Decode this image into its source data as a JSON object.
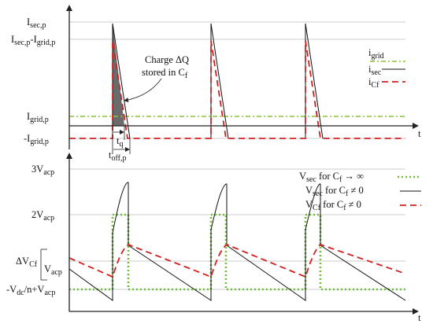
{
  "top": {
    "y_labels": {
      "isec_peak": "I",
      "isec_peak_sub": "sec,p",
      "diff": "I",
      "diff_sub": "sec,p",
      "diff_tail": "-I",
      "diff_tail_sub": "grid,p",
      "igrid": "I",
      "igrid_sub": "grid,p",
      "neg_igrid": "-I",
      "neg_igrid_sub": "grid,p"
    },
    "t_label": "t",
    "annotation": {
      "line1": "Charge ΔQ",
      "line2": "stored in C",
      "line2_sub": "f"
    },
    "tq": {
      "main": "t",
      "sub": "q"
    },
    "toff": {
      "main": "t",
      "sub": "off,p"
    },
    "legend": [
      {
        "main": "i",
        "sub": "grid"
      },
      {
        "main": "i",
        "sub": "sec"
      },
      {
        "main": "i",
        "sub": "Cf"
      }
    ]
  },
  "bottom": {
    "y_labels": {
      "v3": "3V",
      "v3_sub": "acp",
      "v2": "2V",
      "v2_sub": "acp",
      "dvcf": "ΔV",
      "dvcf_sub": "Cf",
      "vacp": "V",
      "vacp_sub": "acp",
      "vdc_a": "-V",
      "vdc_a_sub": "dc",
      "vdc_b": "/n+V",
      "vdc_b_sub": "acp"
    },
    "t_label": "t",
    "legend": [
      {
        "main": "V",
        "sub": "sec",
        "tail": " for C",
        "tail_sub": "f",
        "end": " → ∞"
      },
      {
        "main": "V",
        "sub": "sec",
        "tail": " for C",
        "tail_sub": "f",
        "end": " ≠ 0"
      },
      {
        "main": "V",
        "sub": "Cf",
        "tail": " for C",
        "tail_sub": "f",
        "end": " ≠ 0"
      }
    ]
  },
  "colors": {
    "grid_current": "#8cc43c",
    "sec": "#111111",
    "cf": "#d02020",
    "vinf": "#6fbf3a"
  }
}
